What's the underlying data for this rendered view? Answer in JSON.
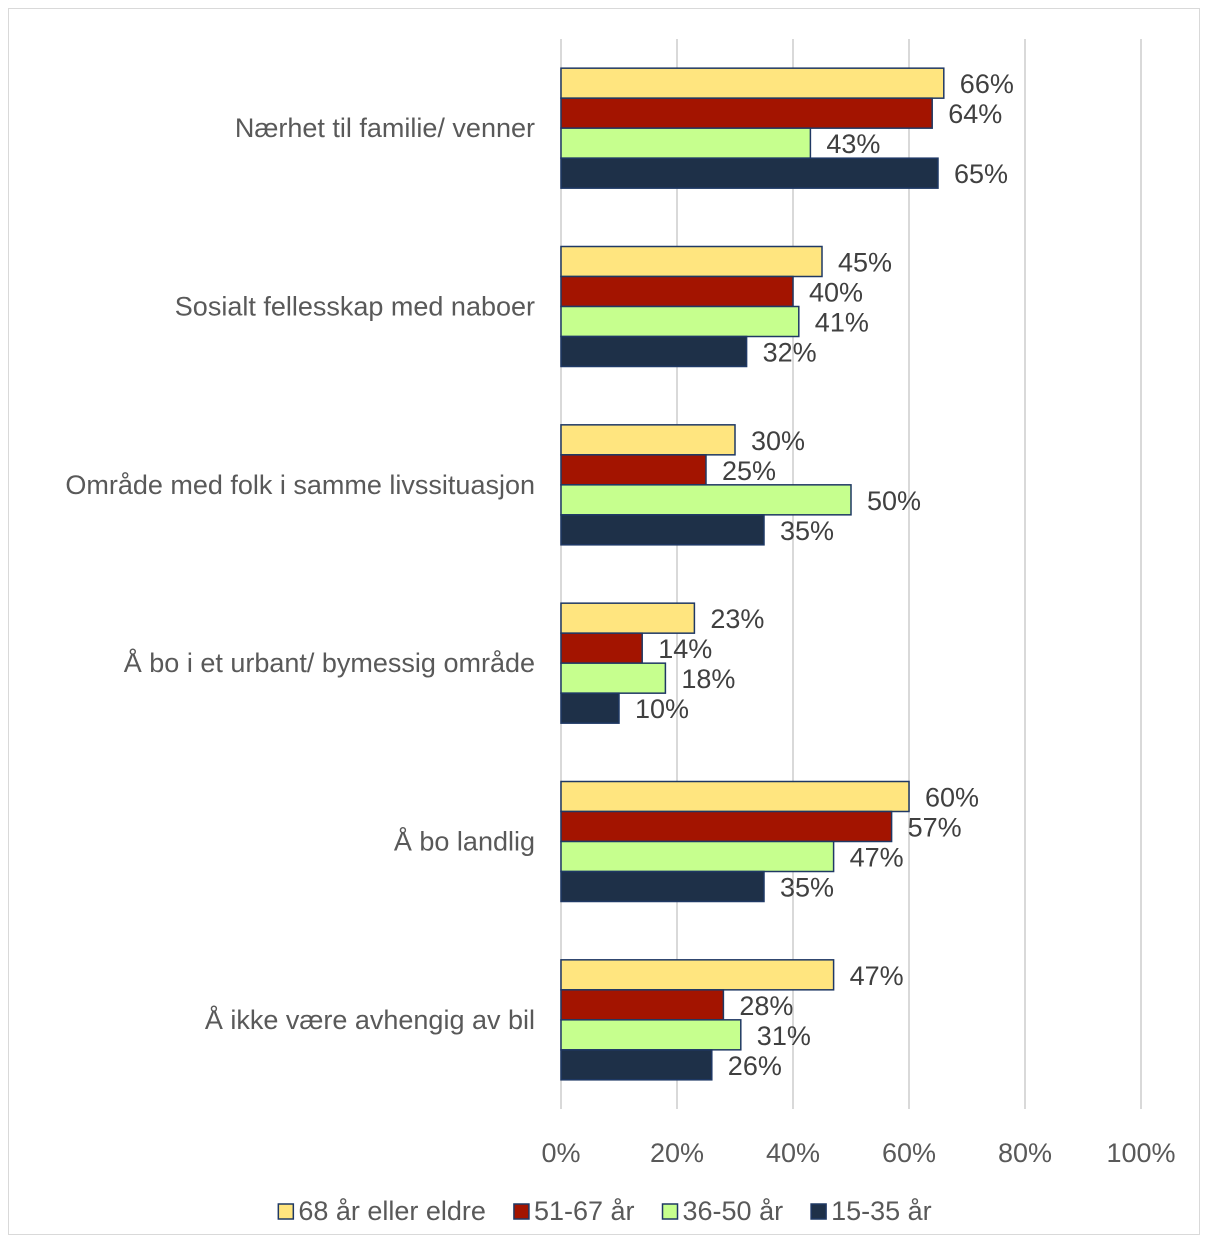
{
  "chart_data": {
    "type": "bar",
    "orientation": "horizontal",
    "categories": [
      "Nærhet til familie/ venner",
      "Sosialt fellesskap med naboer",
      "Område med folk i samme livssituasjon",
      "Å bo i et urbant/ bymessig område",
      "Å bo landlig",
      "Å ikke være avhengig av bil"
    ],
    "series": [
      {
        "name": "68 år eller eldre",
        "color": "#ffe57f",
        "values": [
          66,
          45,
          30,
          23,
          60,
          47
        ],
        "labels": [
          "66%",
          "45%",
          "30%",
          "23%",
          "60%",
          "47%"
        ]
      },
      {
        "name": "51-67 år",
        "color": "#a31400",
        "values": [
          64,
          40,
          25,
          14,
          57,
          28
        ],
        "labels": [
          "64%",
          "40%",
          "25%",
          "14%",
          "57%",
          "28%"
        ]
      },
      {
        "name": "36-50 år",
        "color": "#c6ff8e",
        "values": [
          43,
          41,
          50,
          18,
          47,
          31
        ],
        "labels": [
          "43%",
          "41%",
          "50%",
          "18%",
          "47%",
          "31%"
        ]
      },
      {
        "name": "15-35 år",
        "color": "#1e3048",
        "values": [
          65,
          32,
          35,
          10,
          35,
          26
        ],
        "labels": [
          "65%",
          "32%",
          "35%",
          "10%",
          "35%",
          "26%"
        ]
      }
    ],
    "xlim": [
      0,
      100
    ],
    "xticks": [
      "0%",
      "20%",
      "40%",
      "60%",
      "80%",
      "100%"
    ],
    "grid": true,
    "legend": "bottom",
    "bar_outline_color": "#1f3864"
  }
}
